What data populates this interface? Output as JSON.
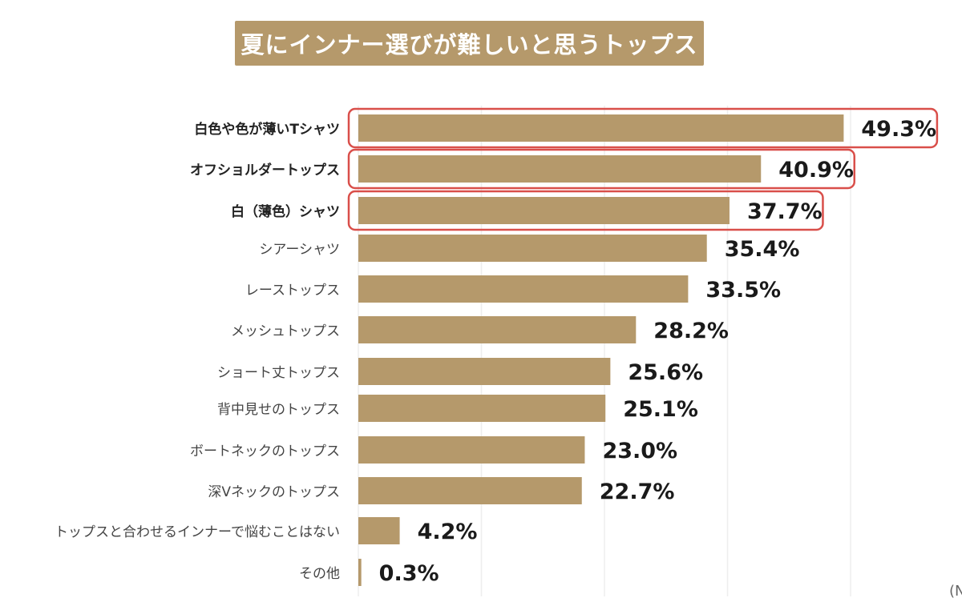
{
  "title": "夏にインナー選びが難しいと思うトップス",
  "note": "(N",
  "colors": {
    "bar": "#b5996b",
    "highlight": "#d94f4a",
    "label": "#444444",
    "value": "#1a1a1a",
    "grid": "#eeeeee"
  },
  "chart_data": {
    "type": "bar",
    "orientation": "horizontal",
    "categories": [
      "白色や色が薄いTシャツ",
      "オフショルダートップス",
      "白（薄色）シャツ",
      "シアーシャツ",
      "レーストップス",
      "メッシュトップス",
      "ショート丈トップス",
      "背中見せのトップス",
      "ボートネックのトップス",
      "深Vネックのトップス",
      "トップスと合わせるインナーで悩むことはない",
      "その他"
    ],
    "values": [
      49.3,
      40.9,
      37.7,
      35.4,
      33.5,
      28.2,
      25.6,
      25.1,
      23.0,
      22.7,
      4.2,
      0.3
    ],
    "value_labels": [
      "49.3%",
      "40.9%",
      "37.7%",
      "35.4%",
      "33.5%",
      "28.2%",
      "25.6%",
      "25.1%",
      "23.0%",
      "22.7%",
      "4.2%",
      "0.3%"
    ],
    "unit": "%",
    "highlighted": [
      "白色や色が薄いTシャツ",
      "オフショルダートップス",
      "白（薄色）シャツ"
    ],
    "xlim": [
      0,
      50
    ],
    "grid": true
  }
}
